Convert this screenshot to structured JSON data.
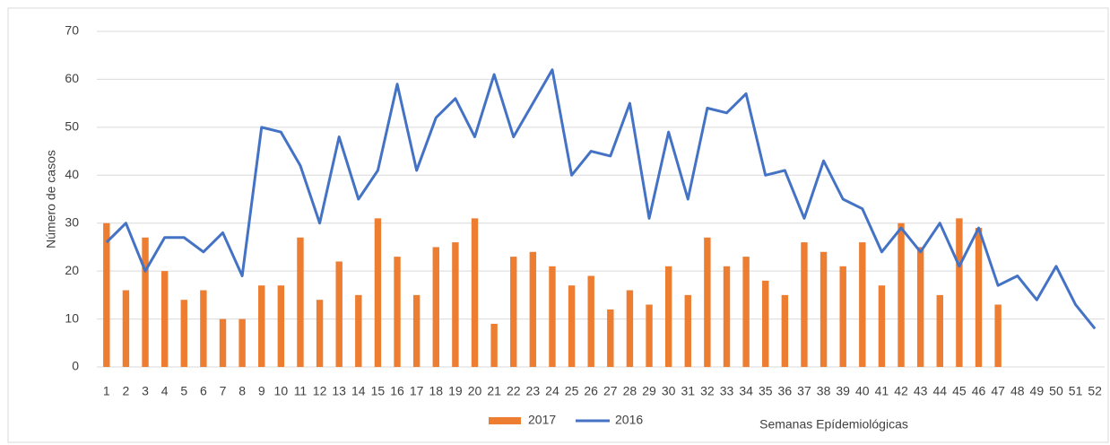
{
  "chart_data": {
    "type": "bar",
    "y_axis_label": "Número de casos",
    "x_axis_label": "Semanas Epídemiológicas",
    "categories": [
      1,
      2,
      3,
      4,
      5,
      6,
      7,
      8,
      9,
      10,
      11,
      12,
      13,
      14,
      15,
      16,
      17,
      18,
      19,
      20,
      21,
      22,
      23,
      24,
      25,
      26,
      27,
      28,
      29,
      30,
      31,
      32,
      33,
      34,
      35,
      36,
      37,
      38,
      39,
      40,
      41,
      42,
      43,
      44,
      45,
      46,
      47,
      48,
      49,
      50,
      51,
      52
    ],
    "series": [
      {
        "name": "2017",
        "type": "bar",
        "color": "#ed7d31",
        "values": [
          30,
          16,
          27,
          20,
          14,
          16,
          10,
          10,
          17,
          17,
          27,
          14,
          22,
          15,
          31,
          23,
          15,
          25,
          26,
          31,
          9,
          23,
          24,
          21,
          17,
          19,
          12,
          16,
          13,
          21,
          15,
          27,
          21,
          23,
          18,
          15,
          26,
          24,
          21,
          26,
          17,
          30,
          25,
          15,
          31,
          29,
          13,
          null,
          null,
          null,
          null,
          null
        ]
      },
      {
        "name": "2016",
        "type": "line",
        "color": "#4472c4",
        "values": [
          26,
          30,
          20,
          27,
          27,
          24,
          28,
          19,
          50,
          49,
          42,
          30,
          48,
          35,
          41,
          59,
          41,
          52,
          56,
          48,
          61,
          48,
          55,
          62,
          40,
          45,
          44,
          55,
          31,
          49,
          35,
          54,
          53,
          57,
          40,
          41,
          31,
          43,
          35,
          33,
          24,
          29,
          24,
          30,
          21,
          29,
          17,
          19,
          14,
          21,
          13,
          8
        ]
      }
    ],
    "ylim": [
      0,
      70
    ],
    "yticks": [
      0,
      10,
      20,
      30,
      40,
      50,
      60,
      70
    ],
    "grid": true,
    "legend": "bottom"
  }
}
